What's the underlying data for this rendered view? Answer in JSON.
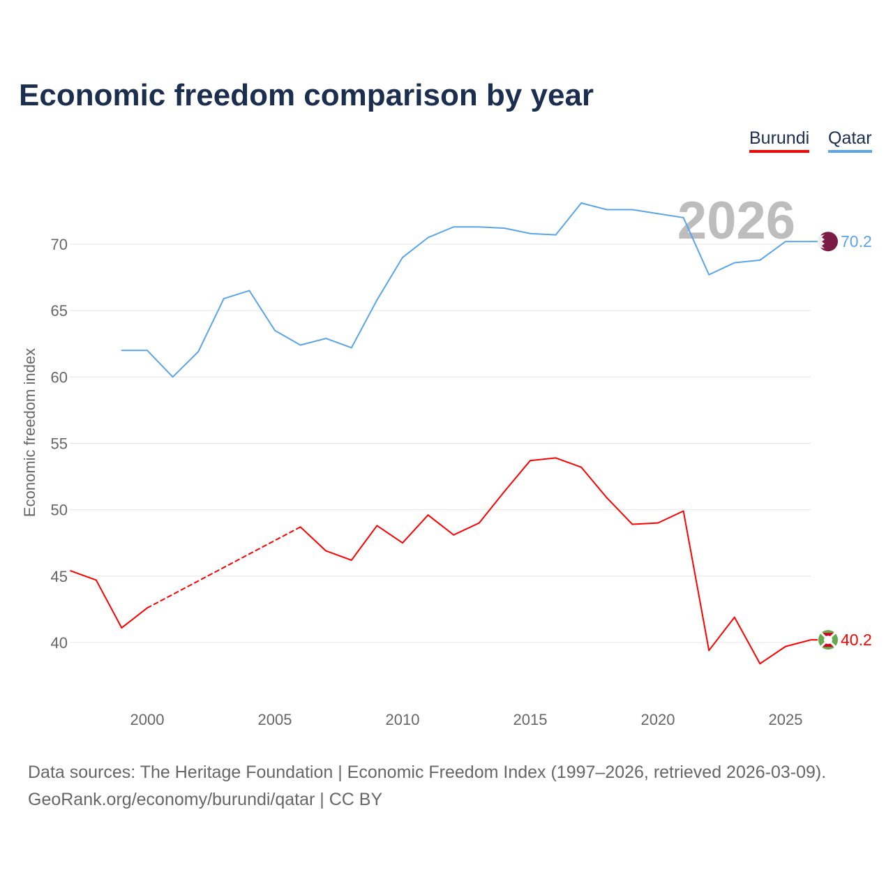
{
  "title": "Economic freedom comparison by year",
  "chart_data": {
    "type": "line",
    "title": "Economic freedom comparison by year",
    "ylabel": "Economic freedom index",
    "xlabel": "",
    "xlim": [
      1997,
      2026
    ],
    "ylim": [
      35,
      74
    ],
    "yticks": [
      40,
      45,
      50,
      55,
      60,
      65,
      70
    ],
    "xticks": [
      2000,
      2005,
      2010,
      2015,
      2020,
      2025
    ],
    "year_watermark": "2026",
    "legend_position": "top-right",
    "x": [
      1997,
      1998,
      1999,
      2000,
      2001,
      2002,
      2003,
      2004,
      2005,
      2006,
      2007,
      2008,
      2009,
      2010,
      2011,
      2012,
      2013,
      2014,
      2015,
      2016,
      2017,
      2018,
      2019,
      2020,
      2021,
      2022,
      2023,
      2024,
      2025,
      2026
    ],
    "series": [
      {
        "name": "Burundi",
        "color": "#ff0000",
        "end_label": "40.2",
        "flag": "burundi-flag",
        "values": [
          45.4,
          44.7,
          41.1,
          42.6,
          null,
          null,
          null,
          null,
          null,
          48.7,
          46.9,
          46.2,
          48.8,
          47.5,
          49.6,
          48.1,
          49.0,
          51.4,
          53.7,
          53.9,
          53.2,
          50.9,
          48.9,
          49.0,
          49.9,
          39.4,
          41.9,
          38.4,
          39.7,
          40.2
        ]
      },
      {
        "name": "Qatar",
        "color": "#5aa5ea",
        "end_label": "70.2",
        "flag": "qatar-flag",
        "values": [
          null,
          null,
          62.0,
          62.0,
          60.0,
          61.9,
          65.9,
          66.5,
          63.5,
          62.4,
          62.9,
          62.2,
          65.8,
          69.0,
          70.5,
          71.3,
          71.3,
          71.2,
          70.8,
          70.7,
          73.1,
          72.6,
          72.6,
          72.3,
          72.0,
          67.7,
          68.6,
          68.8,
          70.2,
          70.2
        ]
      }
    ]
  },
  "footer": {
    "line1": "Data sources: The Heritage Foundation | Economic Freedom Index (1997–2026, retrieved 2026-03-09).",
    "line2": "GeoRank.org/economy/burundi/qatar | CC BY"
  }
}
